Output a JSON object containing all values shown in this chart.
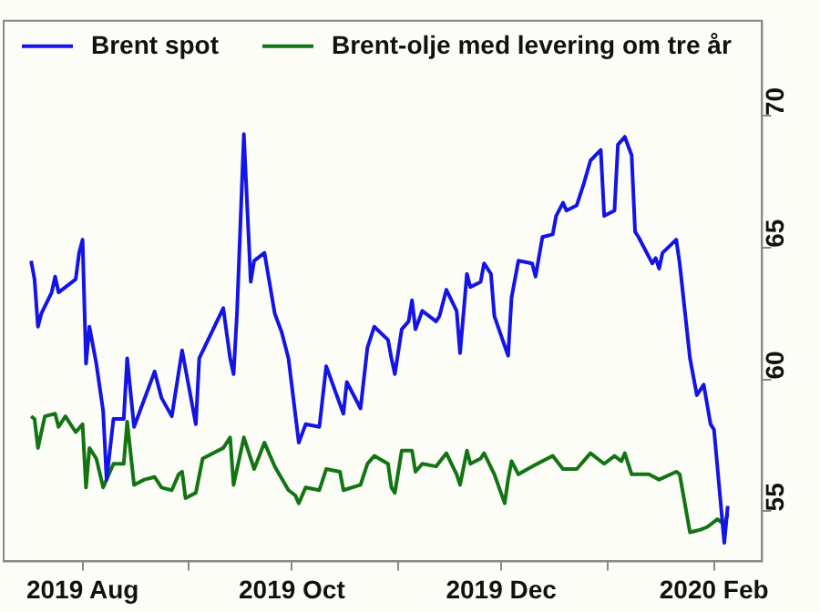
{
  "chart_data": {
    "type": "line",
    "legend": "top",
    "grid": false,
    "marker": "none",
    "line_style": "solid",
    "ylim": [
      53.1,
      73.6
    ],
    "yticks": [
      55,
      60,
      65,
      70
    ],
    "xlim": [
      "2019-07-09",
      "2020-02-15"
    ],
    "xticks": [
      {
        "value": "2019-08-01",
        "label": "2019 Aug"
      },
      {
        "value": "2019-09-01",
        "label": null
      },
      {
        "value": "2019-10-01",
        "label": "2019 Oct"
      },
      {
        "value": "2019-11-01",
        "label": null
      },
      {
        "value": "2019-12-01",
        "label": "2019 Dec"
      },
      {
        "value": "2020-01-01",
        "label": null
      },
      {
        "value": "2020-02-01",
        "label": "2020 Feb"
      }
    ],
    "series": [
      {
        "name": "Brent spot",
        "color": "#1414e6",
        "x": [
          "2019-07-17",
          "2019-07-18",
          "2019-07-19",
          "2019-07-20",
          "2019-07-23",
          "2019-07-24",
          "2019-07-25",
          "2019-07-30",
          "2019-07-31",
          "2019-08-01",
          "2019-08-02",
          "2019-08-03",
          "2019-08-05",
          "2019-08-07",
          "2019-08-08",
          "2019-08-10",
          "2019-08-13",
          "2019-08-14",
          "2019-08-16",
          "2019-08-22",
          "2019-08-24",
          "2019-08-27",
          "2019-08-30",
          "2019-09-03",
          "2019-09-04",
          "2019-09-11",
          "2019-09-13",
          "2019-09-14",
          "2019-09-15",
          "2019-09-17",
          "2019-09-19",
          "2019-09-20",
          "2019-09-23",
          "2019-09-26",
          "2019-09-28",
          "2019-09-30",
          "2019-10-03",
          "2019-10-05",
          "2019-10-09",
          "2019-10-11",
          "2019-10-16",
          "2019-10-17",
          "2019-10-21",
          "2019-10-23",
          "2019-10-25",
          "2019-10-29",
          "2019-10-30",
          "2019-10-31",
          "2019-11-02",
          "2019-11-04",
          "2019-11-05",
          "2019-11-06",
          "2019-11-08",
          "2019-11-12",
          "2019-11-13",
          "2019-11-15",
          "2019-11-18",
          "2019-11-19",
          "2019-11-21",
          "2019-11-22",
          "2019-11-25",
          "2019-11-26",
          "2019-11-28",
          "2019-11-29",
          "2019-12-03",
          "2019-12-04",
          "2019-12-06",
          "2019-12-10",
          "2019-12-11",
          "2019-12-13",
          "2019-12-16",
          "2019-12-17",
          "2019-12-19",
          "2019-12-20",
          "2019-12-23",
          "2019-12-25",
          "2019-12-27",
          "2019-12-30",
          "2019-12-31",
          "2020-01-03",
          "2020-01-04",
          "2020-01-06",
          "2020-01-08",
          "2020-01-09",
          "2020-01-10",
          "2020-01-14",
          "2020-01-15",
          "2020-01-16",
          "2020-01-17",
          "2020-01-21",
          "2020-01-22",
          "2020-01-25",
          "2020-01-27",
          "2020-01-29",
          "2020-01-31",
          "2020-02-01",
          "2020-02-04",
          "2020-02-05"
        ],
        "values": [
          64.5,
          63.8,
          62.0,
          62.5,
          63.3,
          63.9,
          63.3,
          63.8,
          64.8,
          65.3,
          60.6,
          62.0,
          60.6,
          58.8,
          56.2,
          58.5,
          58.5,
          60.8,
          58.2,
          60.3,
          59.3,
          58.6,
          61.1,
          58.3,
          60.8,
          62.7,
          60.8,
          60.2,
          62.5,
          69.3,
          63.7,
          64.5,
          64.8,
          62.5,
          61.8,
          60.8,
          57.6,
          58.3,
          58.2,
          60.5,
          58.7,
          59.9,
          58.9,
          61.2,
          62.0,
          61.5,
          60.8,
          60.2,
          61.9,
          62.2,
          63.0,
          61.9,
          62.6,
          62.2,
          62.4,
          63.4,
          62.6,
          61.0,
          64.0,
          63.5,
          63.7,
          64.4,
          64.0,
          62.4,
          60.9,
          63.1,
          64.5,
          64.4,
          63.9,
          65.4,
          65.5,
          66.2,
          66.7,
          66.4,
          66.6,
          67.4,
          68.3,
          68.7,
          66.2,
          66.4,
          68.9,
          69.2,
          68.5,
          65.6,
          65.4,
          64.4,
          64.6,
          64.2,
          64.8,
          65.3,
          64.4,
          60.8,
          59.4,
          59.8,
          58.3,
          58.1,
          53.8,
          55.2
        ]
      },
      {
        "name": "Brent-olje med levering om tre år",
        "color": "#137413",
        "x": [
          "2019-07-17",
          "2019-07-18",
          "2019-07-19",
          "2019-07-21",
          "2019-07-24",
          "2019-07-25",
          "2019-07-27",
          "2019-07-30",
          "2019-08-01",
          "2019-08-02",
          "2019-08-03",
          "2019-08-05",
          "2019-08-07",
          "2019-08-10",
          "2019-08-13",
          "2019-08-14",
          "2019-08-16",
          "2019-08-19",
          "2019-08-22",
          "2019-08-24",
          "2019-08-27",
          "2019-08-29",
          "2019-08-30",
          "2019-08-31",
          "2019-09-03",
          "2019-09-05",
          "2019-09-11",
          "2019-09-13",
          "2019-09-14",
          "2019-09-17",
          "2019-09-20",
          "2019-09-23",
          "2019-09-26",
          "2019-09-30",
          "2019-10-02",
          "2019-10-03",
          "2019-10-05",
          "2019-10-09",
          "2019-10-11",
          "2019-10-15",
          "2019-10-16",
          "2019-10-21",
          "2019-10-23",
          "2019-10-25",
          "2019-10-29",
          "2019-10-30",
          "2019-10-31",
          "2019-11-02",
          "2019-11-05",
          "2019-11-06",
          "2019-11-08",
          "2019-11-12",
          "2019-11-15",
          "2019-11-18",
          "2019-11-19",
          "2019-11-21",
          "2019-11-22",
          "2019-11-25",
          "2019-11-26",
          "2019-11-29",
          "2019-12-02",
          "2019-12-03",
          "2019-12-04",
          "2019-12-06",
          "2019-12-10",
          "2019-12-16",
          "2019-12-19",
          "2019-12-23",
          "2019-12-27",
          "2019-12-31",
          "2020-01-03",
          "2020-01-05",
          "2020-01-06",
          "2020-01-08",
          "2020-01-13",
          "2020-01-16",
          "2020-01-21",
          "2020-01-22",
          "2020-01-25",
          "2020-01-28",
          "2020-01-30",
          "2020-02-02",
          "2020-02-04",
          "2020-02-05"
        ],
        "values": [
          58.6,
          58.5,
          57.4,
          58.6,
          58.7,
          58.2,
          58.6,
          58.0,
          58.3,
          55.9,
          57.4,
          57.0,
          55.9,
          56.8,
          56.8,
          58.4,
          56.0,
          56.2,
          56.3,
          55.9,
          55.8,
          56.4,
          56.5,
          55.5,
          55.7,
          57.0,
          57.4,
          57.8,
          56.0,
          57.8,
          56.6,
          57.6,
          56.7,
          55.8,
          55.6,
          55.3,
          55.9,
          55.8,
          56.6,
          56.5,
          55.8,
          56.0,
          56.8,
          57.1,
          56.8,
          55.9,
          55.7,
          57.3,
          57.3,
          56.5,
          56.8,
          56.7,
          57.2,
          56.4,
          56.0,
          57.3,
          56.8,
          57.0,
          57.2,
          56.4,
          55.3,
          56.2,
          56.9,
          56.4,
          56.7,
          57.1,
          56.6,
          56.6,
          57.2,
          56.8,
          57.1,
          56.9,
          57.2,
          56.4,
          56.4,
          56.2,
          56.5,
          56.4,
          54.2,
          54.3,
          54.4,
          54.7,
          54.5,
          54.9
        ]
      }
    ]
  }
}
